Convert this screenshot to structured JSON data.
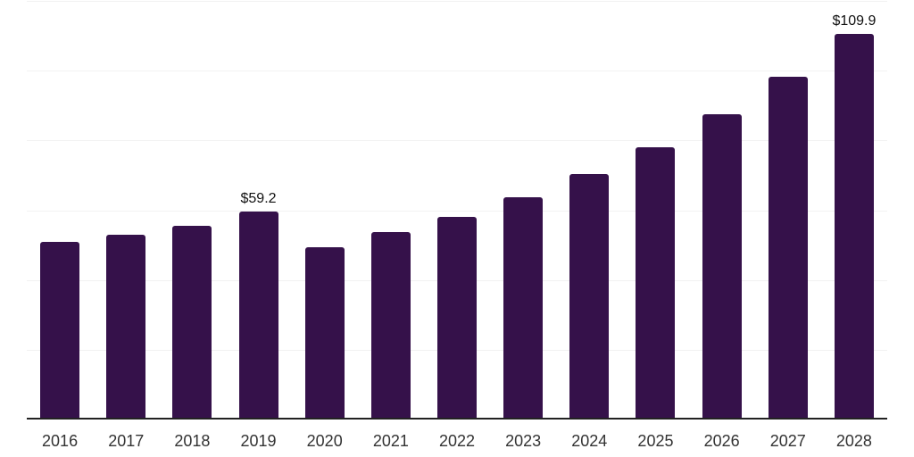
{
  "chart_data": {
    "type": "bar",
    "title": "",
    "xlabel": "",
    "ylabel": "",
    "categories": [
      "2016",
      "2017",
      "2018",
      "2019",
      "2020",
      "2021",
      "2022",
      "2023",
      "2024",
      "2025",
      "2026",
      "2027",
      "2028"
    ],
    "values": [
      50.5,
      52.5,
      55.0,
      59.2,
      49.0,
      53.1,
      57.6,
      63.3,
      69.9,
      77.6,
      87.0,
      97.7,
      109.9
    ],
    "data_labels": [
      null,
      null,
      null,
      "$59.2",
      null,
      null,
      null,
      null,
      null,
      null,
      null,
      null,
      "$109.9"
    ],
    "ylim": [
      0,
      120
    ],
    "gridline_step": 20,
    "grid": true,
    "y_tick_labels_visible": false,
    "legend_position": "none"
  },
  "style": {
    "bar_color": "#35114A",
    "gridline_color": "#f2f2f2",
    "axis_line_color": "#222222",
    "tick_label_color": "#333333",
    "data_label_color": "#111111",
    "background_color": "#ffffff"
  }
}
